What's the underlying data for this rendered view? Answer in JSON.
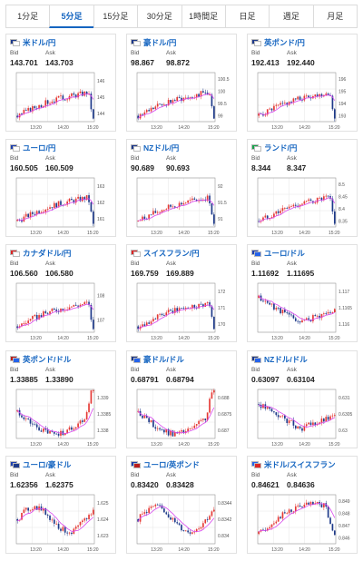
{
  "tabs": [
    {
      "label": "1分足",
      "active": false
    },
    {
      "label": "5分足",
      "active": true
    },
    {
      "label": "15分足",
      "active": false
    },
    {
      "label": "30分足",
      "active": false
    },
    {
      "label": "1時間足",
      "active": false
    },
    {
      "label": "日足",
      "active": false
    },
    {
      "label": "週足",
      "active": false
    },
    {
      "label": "月足",
      "active": false
    }
  ],
  "colors": {
    "up": "#e53935",
    "down": "#1e3a8a",
    "ma": "#d946ef",
    "accent": "#1565c0",
    "grid": "#e6e6e6",
    "frame": "#999999"
  },
  "bid_label": "Bid",
  "ask_label": "Ask",
  "cards": [
    {
      "pair": "米ドル/円",
      "flag_colors": [
        "#1e3a8a",
        "#ffffff"
      ],
      "bid": "143.701",
      "ask": "143.703"
    },
    {
      "pair": "豪ドル/円",
      "flag_colors": [
        "#1e3a8a",
        "#ffffff"
      ],
      "bid": "98.867",
      "ask": "98.872"
    },
    {
      "pair": "英ポンド/円",
      "flag_colors": [
        "#1e3a8a",
        "#ffffff"
      ],
      "bid": "192.413",
      "ask": "192.440"
    },
    {
      "pair": "ユーロ/円",
      "flag_colors": [
        "#1e40af",
        "#ffffff"
      ],
      "bid": "160.505",
      "ask": "160.509"
    },
    {
      "pair": "NZドル/円",
      "flag_colors": [
        "#1e3a8a",
        "#ffffff"
      ],
      "bid": "90.689",
      "ask": "90.693"
    },
    {
      "pair": "ランド/円",
      "flag_colors": [
        "#16a34a",
        "#ffffff"
      ],
      "bid": "8.344",
      "ask": "8.347"
    },
    {
      "pair": "カナダドル/円",
      "flag_colors": [
        "#dc2626",
        "#ffffff"
      ],
      "bid": "106.560",
      "ask": "106.580"
    },
    {
      "pair": "スイスフラン/円",
      "flag_colors": [
        "#dc2626",
        "#ffffff"
      ],
      "bid": "169.759",
      "ask": "169.889"
    },
    {
      "pair": "ユーロ/ドル",
      "flag_colors": [
        "#1e40af",
        "#2563eb"
      ],
      "bid": "1.11692",
      "ask": "1.11695"
    },
    {
      "pair": "英ポンド/ドル",
      "flag_colors": [
        "#b91c1c",
        "#2563eb"
      ],
      "bid": "1.33885",
      "ask": "1.33890"
    },
    {
      "pair": "豪ドル/ドル",
      "flag_colors": [
        "#1e3a8a",
        "#2563eb"
      ],
      "bid": "0.68791",
      "ask": "0.68794"
    },
    {
      "pair": "NZドル/ドル",
      "flag_colors": [
        "#1e3a8a",
        "#2563eb"
      ],
      "bid": "0.63097",
      "ask": "0.63104"
    },
    {
      "pair": "ユーロ/豪ドル",
      "flag_colors": [
        "#1e40af",
        "#1e3a8a"
      ],
      "bid": "1.62356",
      "ask": "1.62375"
    },
    {
      "pair": "ユーロ/英ポンド",
      "flag_colors": [
        "#1e40af",
        "#b91c1c"
      ],
      "bid": "0.83420",
      "ask": "0.83428"
    },
    {
      "pair": "米ドル/スイスフラン",
      "flag_colors": [
        "#2563eb",
        "#dc2626"
      ],
      "bid": "0.84621",
      "ask": "0.84636"
    }
  ],
  "chart_data": [
    {
      "type": "candlestick",
      "xticks": [
        "13:20",
        "14:20",
        "15:20"
      ],
      "yticks": [
        "146",
        "145",
        "144"
      ],
      "ylim": [
        143.4,
        146.6
      ],
      "trend": "up-then-sharp-drop",
      "series": [
        "price",
        "moving average"
      ]
    },
    {
      "type": "candlestick",
      "xticks": [
        "13:20",
        "14:20",
        "15:20"
      ],
      "yticks": [
        "100.5",
        "100",
        "99.5",
        "99"
      ],
      "ylim": [
        98.7,
        100.8
      ],
      "trend": "up-then-sharp-drop",
      "series": [
        "price",
        "moving average"
      ]
    },
    {
      "type": "candlestick",
      "xticks": [
        "13:20",
        "14:20",
        "15:20"
      ],
      "yticks": [
        "196",
        "195",
        "194",
        "193"
      ],
      "ylim": [
        192.3,
        196.6
      ],
      "trend": "up-then-sharp-drop",
      "series": [
        "price",
        "moving average"
      ]
    },
    {
      "type": "candlestick",
      "xticks": [
        "13:20",
        "14:20",
        "15:20"
      ],
      "yticks": [
        "163",
        "162",
        "161"
      ],
      "ylim": [
        160.3,
        163.7
      ],
      "trend": "up-then-sharp-drop",
      "series": [
        "price",
        "moving average"
      ]
    },
    {
      "type": "candlestick",
      "xticks": [
        "13:20",
        "14:20",
        "15:20"
      ],
      "yticks": [
        "92",
        "91.5",
        "91"
      ],
      "ylim": [
        90.5,
        92.4
      ],
      "trend": "up-then-sharp-drop",
      "series": [
        "price",
        "moving average"
      ]
    },
    {
      "type": "candlestick",
      "xticks": [
        "13:20",
        "14:20",
        "15:20"
      ],
      "yticks": [
        "8.5",
        "8.45",
        "8.4",
        "8.35"
      ],
      "ylim": [
        8.32,
        8.53
      ],
      "trend": "up-then-sharp-drop",
      "series": [
        "price",
        "moving average"
      ]
    },
    {
      "type": "candlestick",
      "xticks": [
        "13:20",
        "14:20",
        "15:20"
      ],
      "yticks": [
        "108",
        "107"
      ],
      "ylim": [
        106.4,
        108.7
      ],
      "trend": "up-then-sharp-drop",
      "series": [
        "price",
        "moving average"
      ]
    },
    {
      "type": "candlestick",
      "xticks": [
        "13:20",
        "14:20",
        "15:20"
      ],
      "yticks": [
        "172",
        "171",
        "170"
      ],
      "ylim": [
        169.5,
        172.7
      ],
      "trend": "up-then-sharp-drop",
      "series": [
        "price",
        "moving average"
      ]
    },
    {
      "type": "candlestick",
      "xticks": [
        "13:20",
        "14:20",
        "15:20"
      ],
      "yticks": [
        "1.117",
        "1.1165",
        "1.116"
      ],
      "ylim": [
        1.1157,
        1.1174
      ],
      "trend": "down-then-up",
      "series": [
        "price",
        "moving average"
      ]
    },
    {
      "type": "candlestick",
      "xticks": [
        "13:20",
        "14:20",
        "15:20"
      ],
      "yticks": [
        "1.339",
        "1.3385",
        "1.338"
      ],
      "ylim": [
        1.3376,
        1.3394
      ],
      "trend": "dip-then-sharp-rise",
      "series": [
        "price",
        "moving average"
      ]
    },
    {
      "type": "candlestick",
      "xticks": [
        "13:20",
        "14:20",
        "15:20"
      ],
      "yticks": [
        "0.688",
        "0.6875",
        "0.687"
      ],
      "ylim": [
        0.6866,
        0.6883
      ],
      "trend": "dip-then-sharp-rise",
      "series": [
        "price",
        "moving average"
      ]
    },
    {
      "type": "candlestick",
      "xticks": [
        "13:20",
        "14:20",
        "15:20"
      ],
      "yticks": [
        "0.631",
        "0.6305",
        "0.63"
      ],
      "ylim": [
        0.6297,
        0.6313
      ],
      "trend": "down-then-up",
      "series": [
        "price",
        "moving average"
      ]
    },
    {
      "type": "candlestick",
      "xticks": [
        "13:20",
        "14:20",
        "15:20"
      ],
      "yticks": [
        "1.625",
        "1.624",
        "1.623"
      ],
      "ylim": [
        1.6222,
        1.6256
      ],
      "trend": "choppy-range",
      "series": [
        "price",
        "moving average"
      ]
    },
    {
      "type": "candlestick",
      "xticks": [
        "13:20",
        "14:20",
        "15:20"
      ],
      "yticks": [
        "0.8344",
        "0.8342",
        "0.834"
      ],
      "ylim": [
        0.8337,
        0.8347
      ],
      "trend": "choppy-range",
      "series": [
        "price",
        "moving average"
      ]
    },
    {
      "type": "candlestick",
      "xticks": [
        "13:20",
        "14:20",
        "15:20"
      ],
      "yticks": [
        "0.849",
        "0.848",
        "0.847",
        "0.846"
      ],
      "ylim": [
        0.8454,
        0.8497
      ],
      "trend": "rise-then-sharp-drop",
      "series": [
        "price",
        "moving average"
      ]
    }
  ]
}
